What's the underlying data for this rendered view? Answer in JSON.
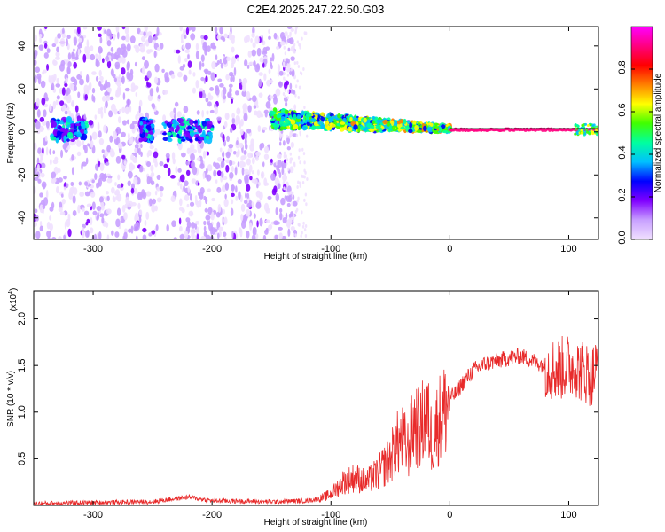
{
  "title": "C2E4.2025.247.22.50.G03",
  "chart_data": [
    {
      "type": "heatmap",
      "name": "spectrogram",
      "xlabel": "Height of straight line (km)",
      "ylabel": "Frequency (Hz)",
      "xlim": [
        -350,
        125
      ],
      "ylim": [
        -50,
        49
      ],
      "xticks": [
        -300,
        -200,
        -100,
        0,
        100
      ],
      "xtick_labels": [
        "-300",
        "-200",
        "-100",
        "0",
        "100"
      ],
      "yticks": [
        -40,
        -20,
        0,
        20,
        40
      ],
      "ytick_labels": [
        "-40",
        "-20",
        "0",
        "20",
        "40"
      ],
      "colorbar": {
        "label": "Normalized spectral amplitude",
        "range": [
          0,
          1
        ],
        "ticks": [
          0.0,
          0.2,
          0.4,
          0.6,
          0.8
        ],
        "tick_labels": [
          "0.0",
          "0.2",
          "0.4",
          "0.6",
          "0.8"
        ],
        "colors": [
          "#f0e0ff",
          "#c8a0ff",
          "#8000ff",
          "#0000ff",
          "#00c0ff",
          "#00ffa0",
          "#40ff00",
          "#ffff00",
          "#ff8000",
          "#ff0000",
          "#ff0080",
          "#ff00ff"
        ]
      },
      "reference_line": {
        "x_start": 0,
        "x_end": 125,
        "y": 1.5,
        "color": "#000000"
      },
      "regions": [
        {
          "x_range": [
            -350,
            -135
          ],
          "level": "scattered low amplitude across full band"
        },
        {
          "x_range": [
            -150,
            0
          ],
          "level": "band near 0-5 Hz, 0.3-0.6"
        },
        {
          "x_range": [
            0,
            125
          ],
          "level": "narrow line at ~1 Hz, 0.9"
        }
      ]
    },
    {
      "type": "line",
      "name": "snr",
      "xlabel": "Height of straight line (km)",
      "ylabel": "SNR (10 * v/v)",
      "y_multiplier": "(x10",
      "y_multiplier_exp": "4",
      "y_multiplier_close": ")",
      "xlim": [
        -350,
        125
      ],
      "ylim": [
        0,
        2.3
      ],
      "xticks": [
        -300,
        -200,
        -100,
        0,
        100
      ],
      "xtick_labels": [
        "-300",
        "-200",
        "-100",
        "0",
        "100"
      ],
      "yticks": [
        0.5,
        1.0,
        1.5,
        2.0
      ],
      "ytick_labels": [
        "0.5",
        "1.0",
        "1.5",
        "2.0"
      ],
      "color": "#e82a2a",
      "series": [
        {
          "name": "SNR",
          "x": [
            -350,
            -300,
            -250,
            -220,
            -200,
            -150,
            -120,
            -110,
            -100,
            -90,
            -80,
            -70,
            -60,
            -50,
            -45,
            -40,
            -35,
            -30,
            -25,
            -20,
            -15,
            -10,
            -5,
            0,
            5,
            10,
            20,
            30,
            40,
            50,
            60,
            70,
            80,
            90,
            100,
            110,
            120,
            125
          ],
          "y": [
            0.02,
            0.03,
            0.04,
            0.09,
            0.05,
            0.04,
            0.05,
            0.07,
            0.12,
            0.25,
            0.3,
            0.25,
            0.35,
            0.5,
            0.65,
            0.7,
            0.6,
            0.9,
            0.8,
            1.0,
            0.7,
            0.9,
            1.0,
            1.15,
            1.2,
            1.3,
            1.45,
            1.52,
            1.55,
            1.58,
            1.6,
            1.55,
            1.5,
            1.45,
            1.5,
            1.45,
            1.4,
            1.5
          ]
        }
      ]
    }
  ]
}
